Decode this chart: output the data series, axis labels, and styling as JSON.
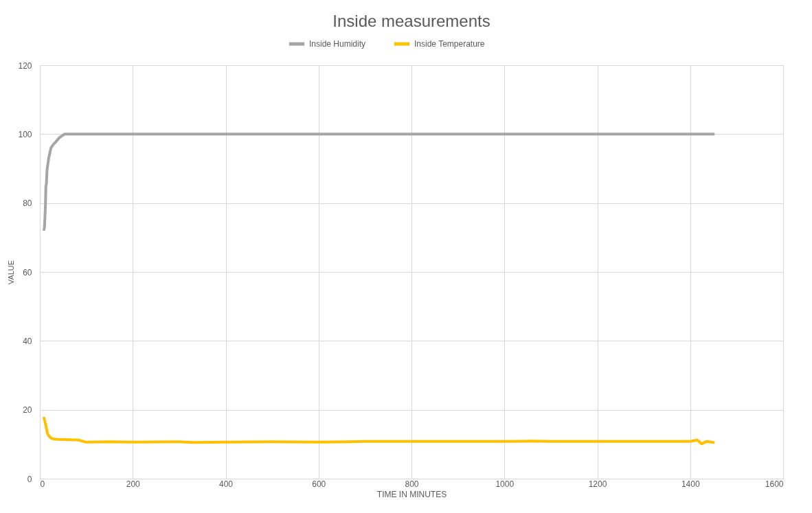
{
  "chart_data": {
    "type": "line",
    "title": "Inside measurements",
    "xlabel": "TIME IN MINUTES",
    "ylabel": "VALUE",
    "xlim": [
      0,
      1600
    ],
    "xticks": [
      0,
      200,
      400,
      600,
      800,
      1000,
      1200,
      1400,
      1600
    ],
    "ylim": [
      0,
      120
    ],
    "yticks": [
      0,
      20,
      40,
      60,
      80,
      100,
      120
    ],
    "grid": true,
    "legend": "top",
    "line_style": "solid",
    "marker": "none",
    "series": [
      {
        "name": "Inside Humidity",
        "color": "#a5a5a5",
        "x": [
          9,
          10,
          12,
          13,
          14,
          15.5,
          19,
          24,
          29,
          34,
          42,
          53,
          200,
          400,
          600,
          800,
          1000,
          1200,
          1400,
          1450
        ],
        "values": [
          72.3,
          73,
          79,
          85,
          85.4,
          89.6,
          93,
          96,
          97,
          97.7,
          99,
          100,
          100,
          100,
          100,
          100,
          100,
          100,
          100,
          100
        ]
      },
      {
        "name": "Inside Temperature",
        "color": "#ffc000",
        "x": [
          9,
          12,
          16.5,
          20,
          24,
          30,
          39,
          60,
          84,
          99,
          150,
          200,
          300,
          330,
          400,
          500,
          600,
          700,
          800,
          900,
          1000,
          1060,
          1100,
          1200,
          1300,
          1400,
          1415,
          1425,
          1435,
          1450
        ],
        "values": [
          17.6,
          16,
          13.1,
          12.3,
          11.8,
          11.5,
          11.4,
          11.3,
          11.2,
          10.6,
          10.7,
          10.6,
          10.7,
          10.5,
          10.6,
          10.7,
          10.6,
          10.8,
          10.8,
          10.8,
          10.8,
          10.9,
          10.8,
          10.8,
          10.8,
          10.8,
          11.2,
          10.1,
          10.8,
          10.5
        ]
      }
    ]
  }
}
